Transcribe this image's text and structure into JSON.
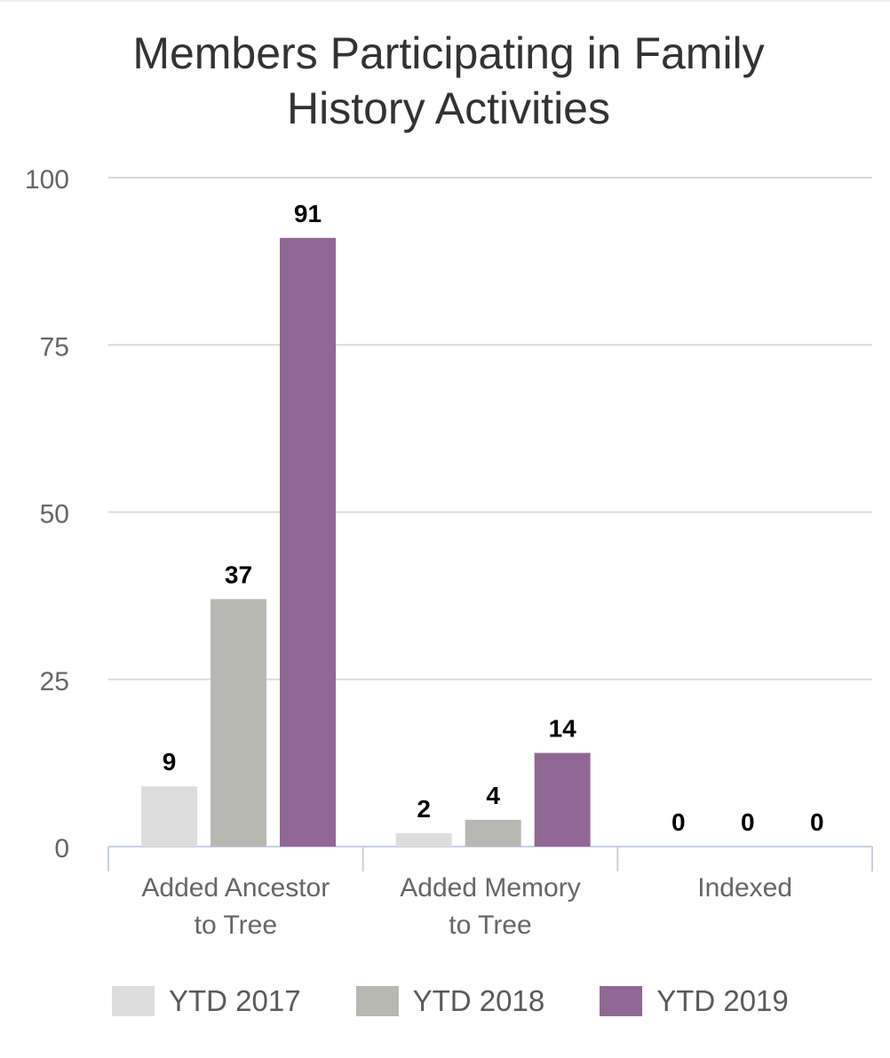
{
  "chart_data": {
    "type": "bar",
    "title_lines": [
      "Members Participating in Family",
      "History Activities"
    ],
    "categories": [
      [
        "Added Ancestor",
        "to Tree"
      ],
      [
        "Added Memory",
        "to Tree"
      ],
      [
        "Indexed"
      ]
    ],
    "series": [
      {
        "name": "YTD 2017",
        "color": "#dddddd",
        "values": [
          9,
          2,
          0
        ]
      },
      {
        "name": "YTD 2018",
        "color": "#b8b8b3",
        "values": [
          37,
          4,
          0
        ]
      },
      {
        "name": "YTD 2019",
        "color": "#906894",
        "values": [
          91,
          14,
          0
        ]
      }
    ],
    "ylim": [
      0,
      100
    ],
    "yticks": [
      0,
      25,
      50,
      75,
      100
    ],
    "grid": true,
    "data_labels": true,
    "legend_position": "bottom"
  },
  "colors": {
    "title": "#333333",
    "axis_text": "#666666",
    "grid": "#d9d9d9",
    "axis_line": "#c8d0e0",
    "data_label": "#000000"
  }
}
